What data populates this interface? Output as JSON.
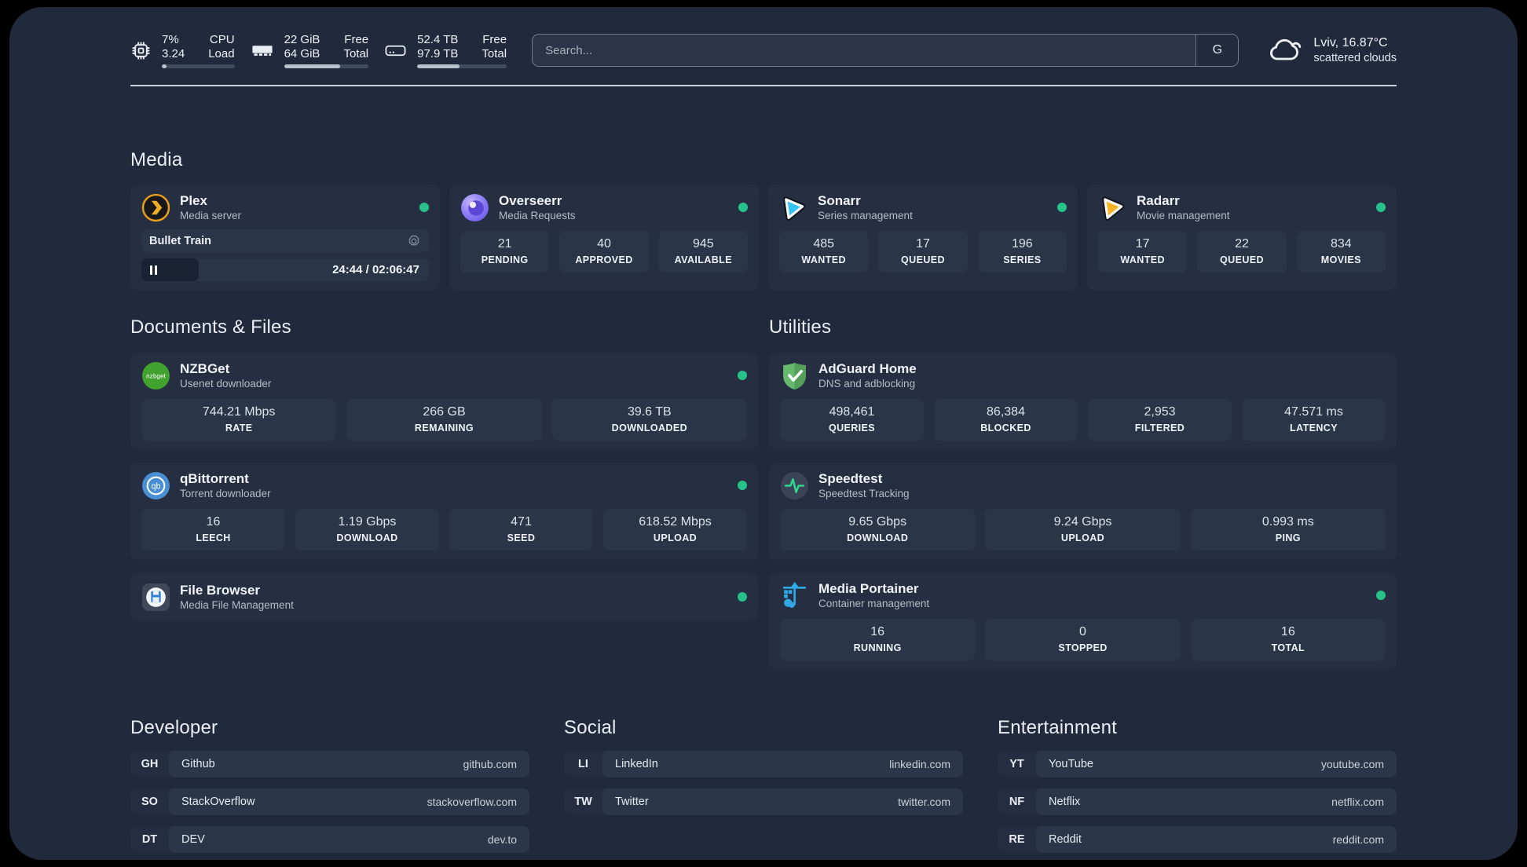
{
  "header": {
    "metrics": [
      {
        "v1": "7%",
        "l1": "CPU",
        "v2": "3.24",
        "l2": "Load",
        "progress": 7
      },
      {
        "v1": "22 GiB",
        "l1": "Free",
        "v2": "64 GiB",
        "l2": "Total",
        "progress": 66
      },
      {
        "v1": "52.4 TB",
        "l1": "Free",
        "v2": "97.9 TB",
        "l2": "Total",
        "progress": 47
      }
    ],
    "search": {
      "placeholder": "Search...",
      "engine_label": "G"
    },
    "weather": {
      "title": "Lviv, 16.87°C",
      "subtitle": "scattered clouds"
    }
  },
  "media": {
    "title": "Media",
    "plex": {
      "name": "Plex",
      "subtitle": "Media server",
      "now_playing": "Bullet Train",
      "time": "24:44 / 02:06:47",
      "progress": 20
    },
    "overseerr": {
      "name": "Overseerr",
      "subtitle": "Media Requests",
      "stats": [
        {
          "value": "21",
          "label": "PENDING"
        },
        {
          "value": "40",
          "label": "APPROVED"
        },
        {
          "value": "945",
          "label": "AVAILABLE"
        }
      ]
    },
    "sonarr": {
      "name": "Sonarr",
      "subtitle": "Series management",
      "stats": [
        {
          "value": "485",
          "label": "WANTED"
        },
        {
          "value": "17",
          "label": "QUEUED"
        },
        {
          "value": "196",
          "label": "SERIES"
        }
      ]
    },
    "radarr": {
      "name": "Radarr",
      "subtitle": "Movie management",
      "stats": [
        {
          "value": "17",
          "label": "WANTED"
        },
        {
          "value": "22",
          "label": "QUEUED"
        },
        {
          "value": "834",
          "label": "MOVIES"
        }
      ]
    }
  },
  "documents": {
    "title": "Documents & Files",
    "nzbget": {
      "name": "NZBGet",
      "subtitle": "Usenet downloader",
      "icon_text": "nzbget",
      "stats": [
        {
          "value": "744.21 Mbps",
          "label": "RATE"
        },
        {
          "value": "266 GB",
          "label": "REMAINING"
        },
        {
          "value": "39.6 TB",
          "label": "DOWNLOADED"
        }
      ]
    },
    "qbittorrent": {
      "name": "qBittorrent",
      "subtitle": "Torrent downloader",
      "icon_text": "qb",
      "stats": [
        {
          "value": "16",
          "label": "LEECH"
        },
        {
          "value": "1.19 Gbps",
          "label": "DOWNLOAD"
        },
        {
          "value": "471",
          "label": "SEED"
        },
        {
          "value": "618.52 Mbps",
          "label": "UPLOAD"
        }
      ]
    },
    "filebrowser": {
      "name": "File Browser",
      "subtitle": "Media File Management"
    }
  },
  "utilities": {
    "title": "Utilities",
    "adguard": {
      "name": "AdGuard Home",
      "subtitle": "DNS and adblocking",
      "stats": [
        {
          "value": "498,461",
          "label": "QUERIES"
        },
        {
          "value": "86,384",
          "label": "BLOCKED"
        },
        {
          "value": "2,953",
          "label": "FILTERED"
        },
        {
          "value": "47.571 ms",
          "label": "LATENCY"
        }
      ]
    },
    "speedtest": {
      "name": "Speedtest",
      "subtitle": "Speedtest Tracking",
      "stats": [
        {
          "value": "9.65 Gbps",
          "label": "DOWNLOAD"
        },
        {
          "value": "9.24 Gbps",
          "label": "UPLOAD"
        },
        {
          "value": "0.993 ms",
          "label": "PING"
        }
      ]
    },
    "portainer": {
      "name": "Media Portainer",
      "subtitle": "Container management",
      "stats": [
        {
          "value": "16",
          "label": "RUNNING"
        },
        {
          "value": "0",
          "label": "STOPPED"
        },
        {
          "value": "16",
          "label": "TOTAL"
        }
      ]
    }
  },
  "bookmarks": [
    {
      "title": "Developer",
      "items": [
        {
          "abbr": "GH",
          "name": "Github",
          "url": "github.com"
        },
        {
          "abbr": "SO",
          "name": "StackOverflow",
          "url": "stackoverflow.com"
        },
        {
          "abbr": "DT",
          "name": "DEV",
          "url": "dev.to"
        }
      ]
    },
    {
      "title": "Social",
      "items": [
        {
          "abbr": "LI",
          "name": "LinkedIn",
          "url": "linkedin.com"
        },
        {
          "abbr": "TW",
          "name": "Twitter",
          "url": "twitter.com"
        }
      ]
    },
    {
      "title": "Entertainment",
      "items": [
        {
          "abbr": "YT",
          "name": "YouTube",
          "url": "youtube.com"
        },
        {
          "abbr": "NF",
          "name": "Netflix",
          "url": "netflix.com"
        },
        {
          "abbr": "RE",
          "name": "Reddit",
          "url": "reddit.com"
        }
      ]
    }
  ],
  "colors": {
    "status_online": "#27c28a",
    "plex_accent": "#e8a01c",
    "page_bg": "#212a3c"
  }
}
